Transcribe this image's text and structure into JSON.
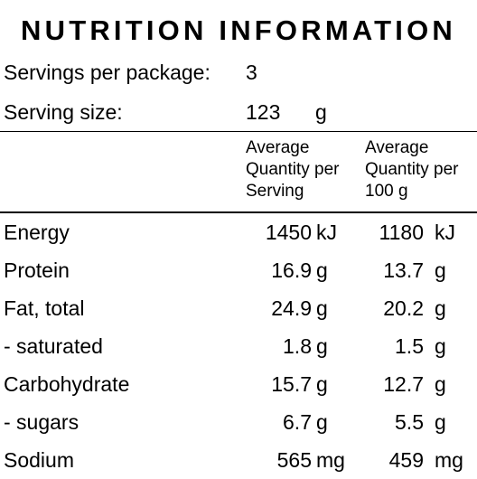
{
  "title": "NUTRITION INFORMATION",
  "servings": {
    "per_package_label": "Servings per package:",
    "per_package_value": "3",
    "size_label": "Serving size:",
    "size_value": "123",
    "size_unit": "g"
  },
  "columns": {
    "per_serving": [
      "Average",
      "Quantity per",
      "Serving"
    ],
    "per_100g": [
      "Average",
      "Quantity per",
      "100 g"
    ]
  },
  "rows": [
    {
      "name": "Energy",
      "serving": "1450",
      "serving_unit": "kJ",
      "per100": "1180",
      "per100_unit": "kJ"
    },
    {
      "name": "Protein",
      "serving": "16.9",
      "serving_unit": "g",
      "per100": "13.7",
      "per100_unit": "g"
    },
    {
      "name": "Fat, total",
      "serving": "24.9",
      "serving_unit": "g",
      "per100": "20.2",
      "per100_unit": "g"
    },
    {
      "name": "- saturated",
      "serving": "1.8",
      "serving_unit": "g",
      "per100": "1.5",
      "per100_unit": "g"
    },
    {
      "name": "Carbohydrate",
      "serving": "15.7",
      "serving_unit": "g",
      "per100": "12.7",
      "per100_unit": "g"
    },
    {
      "name": "- sugars",
      "serving": "6.7",
      "serving_unit": "g",
      "per100": "5.5",
      "per100_unit": "g"
    },
    {
      "name": "Sodium",
      "serving": "565",
      "serving_unit": "mg",
      "per100": "459",
      "per100_unit": "mg"
    }
  ]
}
